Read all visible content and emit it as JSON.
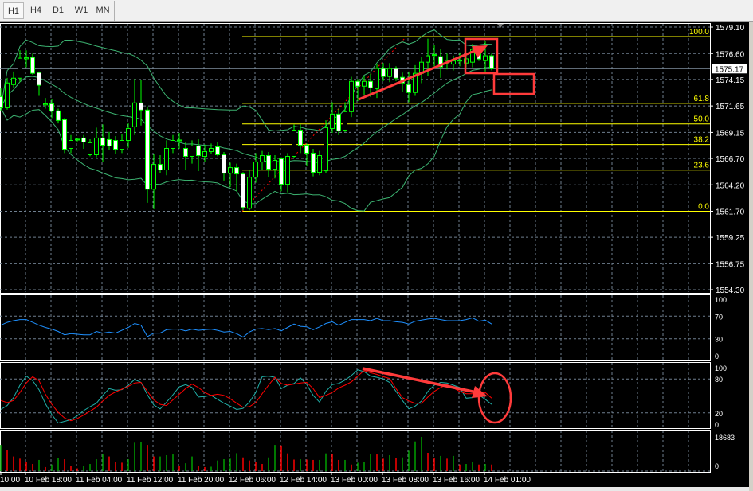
{
  "toolbar": {
    "tabs": [
      {
        "label": "H1",
        "selected": true
      },
      {
        "label": "H4"
      },
      {
        "label": "D1"
      },
      {
        "label": "W1"
      },
      {
        "label": "MN"
      }
    ]
  },
  "colors": {
    "background": "#000000",
    "grid": "#6f7f8f",
    "bull_outline": "#00ff00",
    "bear_body": "#ffffff",
    "bollinger": "#3cb371",
    "fibonacci": "#ffff00",
    "rsi": "#1e90ff",
    "stoch_main": "#20b2aa",
    "stoch_signal": "#ff0000",
    "volume_up": "#00a000",
    "volume_down": "#ff0000",
    "annotation": "#ff3b3b",
    "price_line": "#8090a0"
  },
  "price_axis": {
    "ticks": [
      "1579.10",
      "1576.60",
      "1574.15",
      "1571.65",
      "1569.15",
      "1566.70",
      "1564.20",
      "1561.70",
      "1559.25",
      "1556.75",
      "1554.30"
    ],
    "current_price": "1575.17"
  },
  "fibonacci": {
    "high": 1578.2,
    "low": 1561.7,
    "levels": [
      {
        "label": "100.0",
        "ratio": 1
      },
      {
        "label": "61.8",
        "ratio": 0.618
      },
      {
        "label": "50.0",
        "ratio": 0.5
      },
      {
        "label": "38.2",
        "ratio": 0.382
      },
      {
        "label": "23.6",
        "ratio": 0.236
      },
      {
        "label": "0.0",
        "ratio": 0
      }
    ]
  },
  "bollinger": {
    "period": 20,
    "deviation": 2
  },
  "candles": [
    [
      1572.54,
      1573.3,
      1571.2,
      1571.48
    ],
    [
      1571.48,
      1574.3,
      1571.3,
      1573.82
    ],
    [
      1573.67,
      1574.9,
      1573.4,
      1574.27
    ],
    [
      1574.27,
      1576.9,
      1573.9,
      1576.16
    ],
    [
      1576.1,
      1576.9,
      1575.3,
      1576.2
    ],
    [
      1576.23,
      1576.6,
      1574.6,
      1574.73
    ],
    [
      1574.8,
      1574.9,
      1572.6,
      1573.6
    ],
    [
      1571.75,
      1572.4,
      1571.4,
      1571.85
    ],
    [
      1571.86,
      1572.3,
      1570.5,
      1571.18
    ],
    [
      1571.18,
      1571.4,
      1570.0,
      1570.28
    ],
    [
      1570.35,
      1570.5,
      1567.2,
      1567.56
    ],
    [
      1567.64,
      1568.9,
      1567.2,
      1568.39
    ],
    [
      1568.43,
      1568.6,
      1568.3,
      1568.51
    ],
    [
      1568.62,
      1568.9,
      1567.6,
      1568.24
    ],
    [
      1567.04,
      1568.5,
      1566.9,
      1568.17
    ],
    [
      1567.04,
      1569.6,
      1566.8,
      1568.62
    ],
    [
      1568.62,
      1569.9,
      1566.4,
      1567.94
    ],
    [
      1568.47,
      1569.2,
      1567.5,
      1567.87
    ],
    [
      1568.39,
      1568.8,
      1567.1,
      1567.56
    ],
    [
      1567.56,
      1569.0,
      1567.2,
      1568.39
    ],
    [
      1568.39,
      1570.0,
      1567.7,
      1569.52
    ],
    [
      1569.68,
      1574.2,
      1568.9,
      1571.94
    ],
    [
      1571.94,
      1574.1,
      1569.8,
      1571.26
    ],
    [
      1571.26,
      1571.6,
      1562.5,
      1563.79
    ],
    [
      1563.79,
      1567.1,
      1561.9,
      1566.13
    ],
    [
      1566.13,
      1567.0,
      1565.3,
      1565.61
    ],
    [
      1565.61,
      1568.4,
      1565.1,
      1567.64
    ],
    [
      1567.64,
      1568.9,
      1567.2,
      1568.39
    ],
    [
      1568.35,
      1569.1,
      1567.6,
      1568.43
    ],
    [
      1567.64,
      1568.2,
      1565.6,
      1566.89
    ],
    [
      1566.89,
      1568.4,
      1566.2,
      1567.87
    ],
    [
      1567.87,
      1568.5,
      1565.5,
      1566.96
    ],
    [
      1566.89,
      1568.0,
      1566.4,
      1567.34
    ],
    [
      1567.34,
      1568.1,
      1567.1,
      1567.64
    ],
    [
      1567.79,
      1568.2,
      1566.9,
      1567.04
    ],
    [
      1567.04,
      1567.3,
      1564.6,
      1565.3
    ],
    [
      1565.3,
      1566.3,
      1564.0,
      1565.83
    ],
    [
      1565.83,
      1566.2,
      1563.6,
      1565.23
    ],
    [
      1565.23,
      1565.4,
      1561.8,
      1562.06
    ],
    [
      1561.98,
      1565.6,
      1561.8,
      1564.92
    ],
    [
      1564.92,
      1567.2,
      1564.4,
      1566.36
    ],
    [
      1566.36,
      1567.4,
      1565.6,
      1566.96
    ],
    [
      1566.96,
      1567.3,
      1564.9,
      1565.68
    ],
    [
      1565.68,
      1567.0,
      1564.8,
      1566.51
    ],
    [
      1566.66,
      1566.8,
      1563.6,
      1564.25
    ],
    [
      1564.25,
      1567.2,
      1563.5,
      1566.89
    ],
    [
      1566.89,
      1569.9,
      1566.7,
      1569.37
    ],
    [
      1569.37,
      1569.9,
      1567.2,
      1567.94
    ],
    [
      1567.94,
      1568.1,
      1566.0,
      1567.19
    ],
    [
      1567.19,
      1567.6,
      1565.0,
      1565.38
    ],
    [
      1565.38,
      1567.4,
      1565.1,
      1566.96
    ],
    [
      1565.53,
      1570.3,
      1565.3,
      1569.6
    ],
    [
      1569.52,
      1572.0,
      1569.1,
      1570.88
    ],
    [
      1570.88,
      1571.4,
      1568.9,
      1569.3
    ],
    [
      1569.37,
      1572.0,
      1569.2,
      1571.11
    ],
    [
      1571.11,
      1574.4,
      1570.6,
      1573.97
    ],
    [
      1573.97,
      1574.2,
      1572.1,
      1573.52
    ],
    [
      1573.52,
      1574.5,
      1572.7,
      1573.97
    ],
    [
      1573.97,
      1574.7,
      1572.5,
      1573.37
    ],
    [
      1573.29,
      1575.6,
      1572.4,
      1575.18
    ],
    [
      1575.18,
      1575.7,
      1574.0,
      1574.43
    ],
    [
      1574.43,
      1575.7,
      1573.9,
      1575.18
    ],
    [
      1575.18,
      1575.4,
      1574.0,
      1574.27
    ],
    [
      1574.35,
      1574.8,
      1573.0,
      1573.82
    ],
    [
      1573.67,
      1574.9,
      1572.0,
      1572.92
    ],
    [
      1572.92,
      1575.5,
      1572.6,
      1574.73
    ],
    [
      1574.73,
      1576.3,
      1573.8,
      1575.78
    ],
    [
      1575.78,
      1578.0,
      1574.5,
      1576.39
    ],
    [
      1576.42,
      1577.4,
      1575.4,
      1576.5
    ],
    [
      1576.31,
      1577.0,
      1574.3,
      1575.33
    ],
    [
      1575.63,
      1576.6,
      1575.1,
      1575.93
    ],
    [
      1575.6,
      1576.4,
      1575.0,
      1575.9
    ],
    [
      1575.89,
      1576.7,
      1575.4,
      1575.97
    ],
    [
      1575.7,
      1576.5,
      1575.3,
      1576.1
    ],
    [
      1575.78,
      1577.5,
      1575.3,
      1576.99
    ],
    [
      1577.06,
      1577.2,
      1575.9,
      1576.08
    ],
    [
      1575.93,
      1577.8,
      1574.9,
      1576.39
    ],
    [
      1576.39,
      1576.6,
      1575.0,
      1575.17
    ]
  ],
  "rsi": {
    "levels": [
      "100",
      "70",
      "30",
      "0"
    ],
    "level_lines": [
      70,
      30
    ],
    "values": [
      54,
      59,
      62,
      64,
      64,
      59,
      54,
      50,
      47,
      43,
      37,
      39,
      38,
      37,
      37,
      43,
      40,
      42,
      40,
      45,
      50,
      57,
      54,
      34,
      40,
      40,
      46,
      47,
      47,
      44,
      47,
      45,
      46,
      47,
      45,
      42,
      43,
      39,
      33,
      42,
      47,
      48,
      46,
      48,
      44,
      50,
      56,
      52,
      51,
      46,
      51,
      57,
      60,
      54,
      59,
      64,
      64,
      64,
      62,
      66,
      62,
      62,
      60,
      59,
      56,
      61,
      63,
      65,
      66,
      64,
      62,
      62,
      62,
      64,
      67,
      61,
      63,
      56
    ]
  },
  "stochastic": {
    "levels": [
      "100",
      "80",
      "20",
      "0"
    ],
    "level_lines": [
      80,
      20
    ],
    "main": [
      26,
      33,
      47,
      69,
      85,
      77,
      61,
      36,
      17,
      2,
      5,
      8,
      15,
      24,
      31,
      37,
      51,
      63,
      60,
      61,
      69,
      79,
      74,
      52,
      34,
      27,
      39,
      52,
      66,
      70,
      65,
      48,
      49,
      51,
      44,
      37,
      32,
      26,
      28,
      39,
      56,
      84,
      85,
      83,
      63,
      69,
      72,
      82,
      70,
      51,
      39,
      58,
      70,
      72,
      78,
      86,
      96,
      93,
      85,
      83,
      80,
      74,
      58,
      42,
      27,
      32,
      41,
      58,
      69,
      74,
      73,
      69,
      65,
      46,
      47,
      52,
      44,
      35
    ],
    "signal": [
      42,
      38,
      42,
      56,
      73,
      84,
      77,
      53,
      35,
      21,
      11,
      6,
      10,
      16,
      23,
      30,
      41,
      51,
      57,
      62,
      67,
      73,
      74,
      58,
      43,
      35,
      33,
      43,
      53,
      63,
      71,
      65,
      56,
      51,
      53,
      51,
      45,
      37,
      30,
      31,
      38,
      54,
      69,
      83,
      72,
      69,
      71,
      73,
      74,
      63,
      47,
      51,
      56,
      64,
      69,
      75,
      85,
      95,
      91,
      88,
      84,
      81,
      63,
      47,
      41,
      37,
      37,
      48,
      58,
      65,
      70,
      64,
      58,
      54,
      54,
      54,
      56,
      46
    ]
  },
  "volume": {
    "max_label": "18683",
    "zero_label": "0",
    "max": 18683,
    "values": [
      14300,
      11700,
      8000,
      6800,
      5100,
      3900,
      6100,
      2200,
      3600,
      7200,
      6500,
      2900,
      1500,
      2900,
      3900,
      6500,
      9100,
      8000,
      5100,
      4600,
      6500,
      15500,
      15900,
      14300,
      8000,
      8000,
      8700,
      9100,
      2900,
      4300,
      8000,
      2600,
      2200,
      2400,
      5800,
      6500,
      6800,
      9800,
      7500,
      5800,
      5100,
      3900,
      7500,
      14300,
      14000,
      9700,
      6300,
      6500,
      6300,
      6100,
      6100,
      9700,
      9400,
      6100,
      6100,
      3600,
      4600,
      5100,
      9400,
      9100,
      6800,
      8700,
      7200,
      7500,
      11100,
      16200,
      18683,
      10000,
      7200,
      8300,
      6800,
      8300,
      3600,
      3900,
      5100,
      3600,
      3900,
      3600
    ]
  },
  "time_axis": [
    "10:00",
    "10 Feb 18:00",
    "11 Feb 04:00",
    "11 Feb 12:00",
    "11 Feb 20:00",
    "12 Feb 06:00",
    "12 Feb 14:00",
    "13 Feb 00:00",
    "13 Feb 08:00",
    "13 Feb 16:00",
    "14 Feb 01:00"
  ]
}
